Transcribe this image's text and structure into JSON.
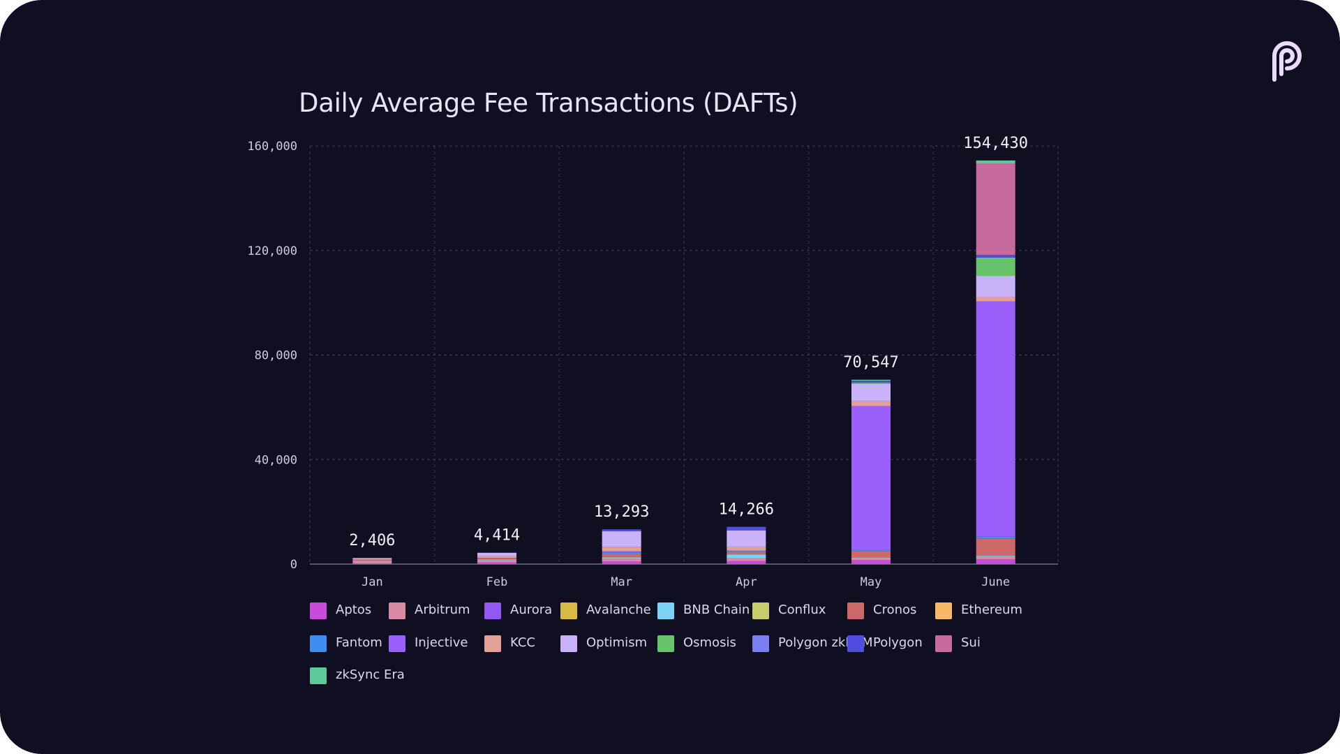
{
  "colors": {
    "background": "#100f21",
    "grid": "#3a3950",
    "axis_text": "#cfcbe0",
    "total_label": "#f2f0fb",
    "title": "#e8e4f6",
    "logo": "#e9dcff"
  },
  "logo": {
    "icon": "pyth-logo-icon"
  },
  "chart_data": {
    "type": "bar",
    "stacked": true,
    "title": "Daily Average Fee Transactions (DAFTs)",
    "xlabel": "",
    "ylabel": "",
    "ylim": [
      0,
      160000
    ],
    "yticks": [
      "0",
      "40,000",
      "80,000",
      "120,000",
      "160,000"
    ],
    "ytick_values": [
      0,
      40000,
      80000,
      120000,
      160000
    ],
    "grid": true,
    "legend_position": "bottom",
    "categories": [
      "Jan",
      "Feb",
      "Mar",
      "Apr",
      "May",
      "June"
    ],
    "totals": [
      "2,406",
      "4,414",
      "13,293",
      "14,266",
      "70,547",
      "154,430"
    ],
    "series": [
      {
        "name": "Aptos",
        "color": "#c84bdc",
        "values": [
          300,
          600,
          1000,
          1200,
          1500,
          1800
        ]
      },
      {
        "name": "Arbitrum",
        "color": "#d98ba6",
        "values": [
          900,
          900,
          1100,
          1000,
          700,
          1200
        ]
      },
      {
        "name": "Aurora",
        "color": "#9159f2",
        "values": [
          0,
          0,
          0,
          0,
          0,
          0
        ]
      },
      {
        "name": "Avalanche",
        "color": "#d9b945",
        "values": [
          0,
          0,
          0,
          0,
          0,
          0
        ]
      },
      {
        "name": "BNB Chain",
        "color": "#7dd3f5",
        "values": [
          100,
          300,
          500,
          1500,
          300,
          300
        ]
      },
      {
        "name": "Conflux",
        "color": "#c8cc6a",
        "values": [
          0,
          0,
          0,
          0,
          0,
          0
        ]
      },
      {
        "name": "Cronos",
        "color": "#cc6868",
        "values": [
          300,
          400,
          1400,
          1000,
          2500,
          6500
        ]
      },
      {
        "name": "Ethereum",
        "color": "#f7b867",
        "values": [
          0,
          0,
          0,
          0,
          0,
          0
        ]
      },
      {
        "name": "Fantom",
        "color": "#3f8cf2",
        "values": [
          100,
          200,
          500,
          500,
          500,
          700
        ]
      },
      {
        "name": "Injective",
        "color": "#9961fa",
        "values": [
          0,
          0,
          400,
          0,
          55000,
          90000
        ]
      },
      {
        "name": "KCC",
        "color": "#e2a096",
        "values": [
          300,
          600,
          1700,
          1500,
          1800,
          1800
        ]
      },
      {
        "name": "Optimism",
        "color": "#c8b2f8",
        "values": [
          300,
          1300,
          6000,
          6200,
          6800,
          8000
        ]
      },
      {
        "name": "Osmosis",
        "color": "#67c46d",
        "values": [
          0,
          0,
          0,
          0,
          300,
          7000
        ]
      },
      {
        "name": "Polygon zkEVM",
        "color": "#7b7ff0",
        "values": [
          0,
          0,
          0,
          0,
          0,
          0
        ]
      },
      {
        "name": "Polygon",
        "color": "#4f4ee0",
        "values": [
          106,
          114,
          693,
          1366,
          847,
          1030
        ]
      },
      {
        "name": "Sui",
        "color": "#c76b9e",
        "values": [
          0,
          0,
          0,
          0,
          0,
          35000
        ]
      },
      {
        "name": "zkSync Era",
        "color": "#5ec99a",
        "values": [
          0,
          0,
          0,
          0,
          300,
          1100
        ]
      }
    ]
  }
}
